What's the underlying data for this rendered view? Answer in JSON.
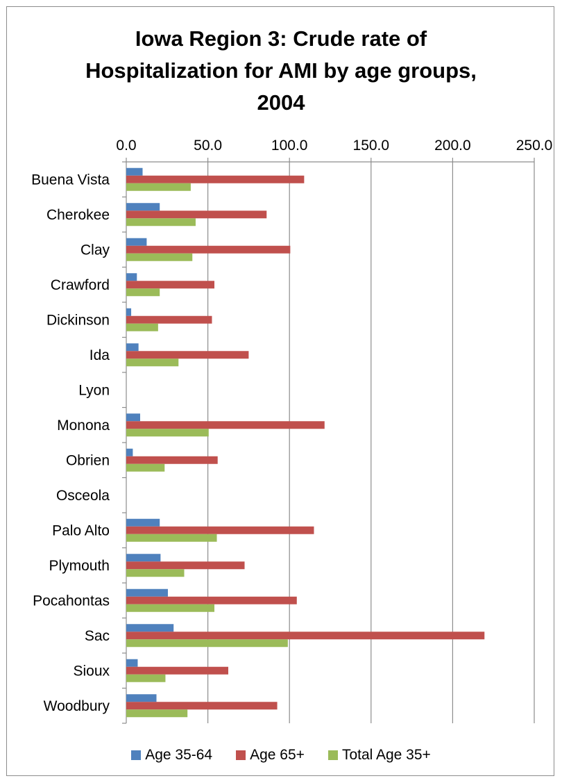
{
  "chart_data": {
    "type": "bar",
    "orientation": "horizontal",
    "title_lines": [
      "Iowa Region 3: Crude rate of",
      "Hospitalization for AMI by age groups,",
      "2004"
    ],
    "xlim": [
      0,
      250
    ],
    "x_ticks": [
      "0.0",
      "50.0",
      "100.0",
      "150.0",
      "200.0",
      "250.0"
    ],
    "x_tick_values": [
      0,
      50,
      100,
      150,
      200,
      250
    ],
    "x_axis_position": "top",
    "grid": true,
    "legend_position": "bottom",
    "categories": [
      "Buena Vista",
      "Cherokee",
      "Clay",
      "Crawford",
      "Dickinson",
      "Ida",
      "Lyon",
      "Monona",
      "Obrien",
      "Osceola",
      "Palo Alto",
      "Plymouth",
      "Pocahontas",
      "Sac",
      "Sioux",
      "Woodbury"
    ],
    "series": [
      {
        "name": "Age 35-64",
        "color": "#4f81bd",
        "values": [
          10,
          20.5,
          12.5,
          6.5,
          3,
          7.5,
          0,
          8.5,
          4,
          0,
          20.5,
          21,
          25.5,
          29,
          7,
          18.5
        ]
      },
      {
        "name": "Age 65+",
        "color": "#c0504d",
        "values": [
          109,
          86,
          100.5,
          54,
          52.5,
          75,
          0,
          121.5,
          56,
          0,
          115,
          72.5,
          104.5,
          219.5,
          62.5,
          92.5
        ]
      },
      {
        "name": "Total Age 35+",
        "color": "#9bbb59",
        "values": [
          39.5,
          42.5,
          40.5,
          20.5,
          19.5,
          32,
          0,
          50.5,
          23.5,
          0,
          55.5,
          35.5,
          54,
          99,
          24,
          37.5
        ]
      }
    ]
  }
}
